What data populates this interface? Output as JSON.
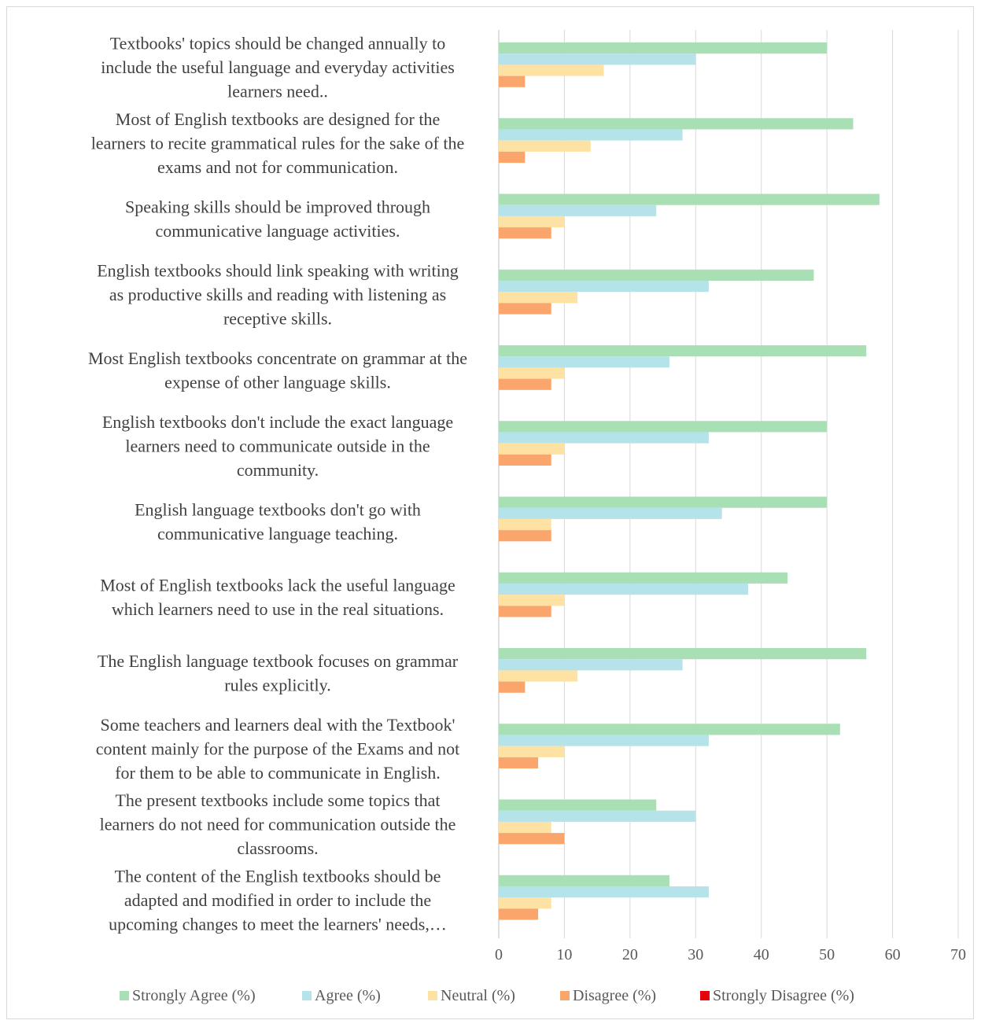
{
  "chart_data": {
    "type": "bar",
    "orientation": "horizontal",
    "title": "",
    "xlabel": "",
    "ylabel": "",
    "xlim": [
      0,
      70
    ],
    "xticks": [
      0,
      10,
      20,
      30,
      40,
      50,
      60,
      70
    ],
    "grid": "vertical",
    "legend_position": "bottom",
    "categories": [
      [
        "Textbooks' topics should be changed annually to",
        "include the useful language and everyday activities",
        "learners need.."
      ],
      [
        "Most of English textbooks are designed for the",
        "learners to recite grammatical rules for the sake of the",
        "exams and not for communication."
      ],
      [
        "Speaking skills should be improved through",
        "communicative language activities."
      ],
      [
        "English textbooks should link speaking with writing",
        "as productive skills and reading with listening as",
        "receptive skills."
      ],
      [
        "Most English textbooks concentrate on grammar at the",
        "expense of other language skills."
      ],
      [
        "English textbooks don't include the exact language",
        "learners need to communicate outside in the",
        "community."
      ],
      [
        "English language textbooks don't go with",
        "communicative language teaching."
      ],
      [
        "Most of English textbooks lack the useful language",
        "which learners need to use in the real situations."
      ],
      [
        "The English language textbook focuses on grammar",
        "rules explicitly."
      ],
      [
        "Some teachers and learners deal with the Textbook'",
        "content mainly for the purpose of the Exams and not",
        "for them to be able to communicate in English."
      ],
      [
        "The present textbooks include some topics that",
        "learners do not need for communication outside the",
        "classrooms."
      ],
      [
        "The content of the English textbooks should be",
        "adapted and modified in order to include the",
        "upcoming changes to meet the learners' needs,…"
      ]
    ],
    "series": [
      {
        "name": "Strongly Agree (%)",
        "color": "#a9dfb4",
        "values": [
          50,
          54,
          58,
          48,
          56,
          50,
          50,
          44,
          56,
          52,
          24,
          26
        ]
      },
      {
        "name": "Agree (%)",
        "color": "#b6e3e9",
        "values": [
          30,
          28,
          24,
          32,
          26,
          32,
          34,
          38,
          28,
          32,
          30,
          32
        ]
      },
      {
        "name": "Neutral (%)",
        "color": "#fde2a3",
        "values": [
          16,
          14,
          10,
          12,
          10,
          10,
          8,
          10,
          12,
          10,
          8,
          8
        ]
      },
      {
        "name": "Disagree (%)",
        "color": "#f9a56b",
        "values": [
          4,
          4,
          8,
          8,
          8,
          8,
          8,
          8,
          4,
          6,
          10,
          6
        ]
      },
      {
        "name": "Strongly Disagree (%)",
        "color": "#e8000b",
        "values": [
          0,
          0,
          0,
          0,
          0,
          0,
          0,
          0,
          0,
          0,
          0,
          0
        ]
      }
    ]
  }
}
